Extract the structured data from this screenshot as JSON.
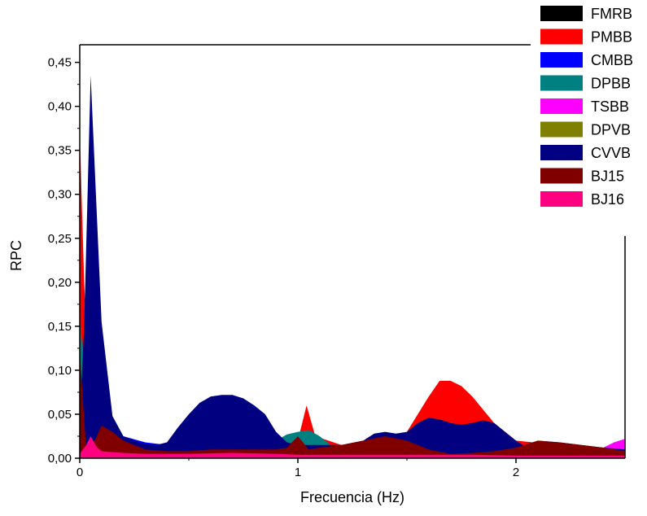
{
  "chart_data": {
    "type": "area",
    "xlabel": "Frecuencia (Hz)",
    "ylabel": "RPC",
    "xlim": [
      0,
      2.5
    ],
    "ylim": [
      0,
      0.47
    ],
    "x_ticks": [
      0,
      1,
      2
    ],
    "x_tick_labels": [
      "0",
      "1",
      "2"
    ],
    "y_ticks": [
      0,
      0.05,
      0.1,
      0.15,
      0.2,
      0.25,
      0.3,
      0.35,
      0.4,
      0.45
    ],
    "y_tick_labels": [
      "0,00",
      "0,05",
      "0,10",
      "0,15",
      "0,20",
      "0,25",
      "0,30",
      "0,35",
      "0,40",
      "0,45"
    ],
    "grid": false,
    "legend_position": "top-right",
    "series": [
      {
        "name": "FMRB",
        "color": "#000000",
        "points": [
          [
            0,
            0.12
          ],
          [
            0.05,
            0.02
          ],
          [
            0.1,
            0.01
          ],
          [
            0.3,
            0.005
          ],
          [
            1.0,
            0.004
          ],
          [
            1.5,
            0.004
          ],
          [
            2.0,
            0.003
          ],
          [
            2.5,
            0.003
          ]
        ]
      },
      {
        "name": "PMBB",
        "color": "#ff0000",
        "points": [
          [
            0,
            0.37
          ],
          [
            0.02,
            0.2
          ],
          [
            0.05,
            0.05
          ],
          [
            0.1,
            0.03
          ],
          [
            0.2,
            0.02
          ],
          [
            0.3,
            0.015
          ],
          [
            0.5,
            0.01
          ],
          [
            0.9,
            0.01
          ],
          [
            1.0,
            0.02
          ],
          [
            1.04,
            0.06
          ],
          [
            1.08,
            0.025
          ],
          [
            1.2,
            0.015
          ],
          [
            1.4,
            0.02
          ],
          [
            1.5,
            0.03
          ],
          [
            1.6,
            0.07
          ],
          [
            1.65,
            0.088
          ],
          [
            1.7,
            0.088
          ],
          [
            1.75,
            0.082
          ],
          [
            1.8,
            0.07
          ],
          [
            1.9,
            0.04
          ],
          [
            2.0,
            0.02
          ],
          [
            2.2,
            0.015
          ],
          [
            2.5,
            0.01
          ]
        ]
      },
      {
        "name": "CMBB",
        "color": "#0000ff",
        "points": [
          [
            0,
            0.08
          ],
          [
            0.05,
            0.05
          ],
          [
            0.1,
            0.04
          ],
          [
            0.2,
            0.025
          ],
          [
            0.3,
            0.018
          ],
          [
            0.4,
            0.015
          ],
          [
            0.6,
            0.012
          ],
          [
            0.8,
            0.01
          ],
          [
            1.0,
            0.012
          ],
          [
            1.2,
            0.012
          ],
          [
            1.4,
            0.015
          ],
          [
            1.6,
            0.015
          ],
          [
            1.8,
            0.012
          ],
          [
            2.0,
            0.01
          ],
          [
            2.2,
            0.015
          ],
          [
            2.4,
            0.012
          ],
          [
            2.5,
            0.01
          ]
        ]
      },
      {
        "name": "DPBB",
        "color": "#008080",
        "points": [
          [
            0,
            0.16
          ],
          [
            0.05,
            0.02
          ],
          [
            0.1,
            0.015
          ],
          [
            0.5,
            0.01
          ],
          [
            0.9,
            0.02
          ],
          [
            0.95,
            0.027
          ],
          [
            1.0,
            0.03
          ],
          [
            1.05,
            0.032
          ],
          [
            1.1,
            0.025
          ],
          [
            1.15,
            0.015
          ],
          [
            1.3,
            0.01
          ],
          [
            1.6,
            0.01
          ],
          [
            2.0,
            0.008
          ],
          [
            2.5,
            0.005
          ]
        ]
      },
      {
        "name": "TSBB",
        "color": "#ff00ff",
        "points": [
          [
            0,
            0.01
          ],
          [
            0.5,
            0.005
          ],
          [
            1.0,
            0.005
          ],
          [
            1.5,
            0.005
          ],
          [
            2.0,
            0.005
          ],
          [
            2.2,
            0.005
          ],
          [
            2.3,
            0.008
          ],
          [
            2.4,
            0.012
          ],
          [
            2.45,
            0.018
          ],
          [
            2.5,
            0.022
          ]
        ]
      },
      {
        "name": "DPVB",
        "color": "#808000",
        "points": [
          [
            0,
            0.02
          ],
          [
            0.1,
            0.01
          ],
          [
            0.5,
            0.005
          ],
          [
            1.0,
            0.005
          ],
          [
            1.5,
            0.005
          ],
          [
            2.0,
            0.004
          ],
          [
            2.5,
            0.003
          ]
        ]
      },
      {
        "name": "CVVB",
        "color": "#000080",
        "points": [
          [
            0,
            0.04
          ],
          [
            0.02,
            0.15
          ],
          [
            0.05,
            0.435
          ],
          [
            0.1,
            0.155
          ],
          [
            0.15,
            0.048
          ],
          [
            0.2,
            0.025
          ],
          [
            0.25,
            0.02
          ],
          [
            0.3,
            0.016
          ],
          [
            0.35,
            0.015
          ],
          [
            0.4,
            0.018
          ],
          [
            0.45,
            0.035
          ],
          [
            0.5,
            0.05
          ],
          [
            0.55,
            0.063
          ],
          [
            0.6,
            0.07
          ],
          [
            0.65,
            0.072
          ],
          [
            0.7,
            0.072
          ],
          [
            0.75,
            0.068
          ],
          [
            0.8,
            0.06
          ],
          [
            0.85,
            0.05
          ],
          [
            0.9,
            0.03
          ],
          [
            0.95,
            0.018
          ],
          [
            1.0,
            0.015
          ],
          [
            1.1,
            0.015
          ],
          [
            1.2,
            0.015
          ],
          [
            1.3,
            0.02
          ],
          [
            1.35,
            0.028
          ],
          [
            1.4,
            0.03
          ],
          [
            1.45,
            0.028
          ],
          [
            1.5,
            0.03
          ],
          [
            1.55,
            0.04
          ],
          [
            1.6,
            0.046
          ],
          [
            1.65,
            0.044
          ],
          [
            1.7,
            0.04
          ],
          [
            1.75,
            0.038
          ],
          [
            1.8,
            0.04
          ],
          [
            1.85,
            0.043
          ],
          [
            1.9,
            0.04
          ],
          [
            1.95,
            0.03
          ],
          [
            2.0,
            0.02
          ],
          [
            2.05,
            0.012
          ],
          [
            2.1,
            0.02
          ],
          [
            2.2,
            0.018
          ],
          [
            2.3,
            0.015
          ],
          [
            2.4,
            0.012
          ],
          [
            2.5,
            0.01
          ]
        ]
      },
      {
        "name": "BJ15",
        "color": "#800000",
        "points": [
          [
            0,
            0.12
          ],
          [
            0.03,
            0.01
          ],
          [
            0.05,
            0.01
          ],
          [
            0.1,
            0.037
          ],
          [
            0.15,
            0.03
          ],
          [
            0.2,
            0.02
          ],
          [
            0.3,
            0.01
          ],
          [
            0.4,
            0.008
          ],
          [
            0.5,
            0.008
          ],
          [
            0.6,
            0.01
          ],
          [
            0.7,
            0.01
          ],
          [
            0.8,
            0.01
          ],
          [
            0.9,
            0.01
          ],
          [
            0.95,
            0.012
          ],
          [
            1.0,
            0.025
          ],
          [
            1.05,
            0.01
          ],
          [
            1.1,
            0.012
          ],
          [
            1.2,
            0.015
          ],
          [
            1.3,
            0.02
          ],
          [
            1.4,
            0.025
          ],
          [
            1.5,
            0.02
          ],
          [
            1.6,
            0.01
          ],
          [
            1.7,
            0.005
          ],
          [
            1.8,
            0.006
          ],
          [
            1.9,
            0.008
          ],
          [
            2.0,
            0.012
          ],
          [
            2.1,
            0.02
          ],
          [
            2.2,
            0.018
          ],
          [
            2.3,
            0.015
          ],
          [
            2.4,
            0.012
          ],
          [
            2.5,
            0.008
          ]
        ]
      },
      {
        "name": "BJ16",
        "color": "#ff0080",
        "points": [
          [
            0,
            0.005
          ],
          [
            0.03,
            0.015
          ],
          [
            0.05,
            0.025
          ],
          [
            0.08,
            0.012
          ],
          [
            0.1,
            0.008
          ],
          [
            0.2,
            0.006
          ],
          [
            0.3,
            0.005
          ],
          [
            0.5,
            0.005
          ],
          [
            0.7,
            0.006
          ],
          [
            0.9,
            0.005
          ],
          [
            1.0,
            0.004
          ],
          [
            1.2,
            0.004
          ],
          [
            1.5,
            0.004
          ],
          [
            1.8,
            0.004
          ],
          [
            2.0,
            0.003
          ],
          [
            2.2,
            0.003
          ],
          [
            2.5,
            0.003
          ]
        ]
      }
    ]
  }
}
